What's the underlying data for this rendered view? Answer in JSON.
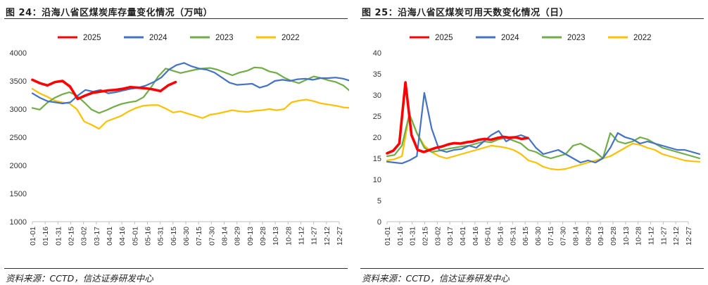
{
  "charts": [
    {
      "title": "图 24：沿海八省区煤炭库存量变化情况（万吨）",
      "source": "资料来源：CCTD，信达证券研发中心"
    },
    {
      "title": "图 25：沿海八省区煤炭可用天数变化情况（日）",
      "source": "资料来源：CCTD，信达证券研发中心"
    }
  ],
  "chart_data": [
    {
      "type": "line",
      "title": "图 24：沿海八省区煤炭库存量变化情况（万吨）",
      "xlabel": "",
      "ylabel": "",
      "ylim": [
        1000,
        4000
      ],
      "yticks": [
        1000,
        1500,
        2000,
        2500,
        3000,
        3500,
        4000
      ],
      "xticks": [
        "01-01",
        "01-16",
        "01-31",
        "02-15",
        "03-02",
        "03-17",
        "04-01",
        "04-16",
        "05-01",
        "05-16",
        "05-31",
        "06-15",
        "06-30",
        "07-15",
        "07-30",
        "08-14",
        "08-29",
        "09-13",
        "09-28",
        "10-13",
        "10-28",
        "11-12",
        "11-27",
        "12-12",
        "12-27"
      ],
      "legend_position": "top",
      "grid": false,
      "series": [
        {
          "name": "2025",
          "color": "#ff0000",
          "x_end": 11.2,
          "values": [
            3520,
            3460,
            3420,
            3480,
            3500,
            3400,
            3180,
            3240,
            3290,
            3310,
            3330,
            3340,
            3360,
            3390,
            3380,
            3370,
            3350,
            3320,
            3420,
            3480
          ]
        },
        {
          "name": "2024",
          "color": "#4472c4",
          "x_end": 24.9,
          "values": [
            3280,
            3200,
            3140,
            3120,
            3100,
            3120,
            3240,
            3340,
            3310,
            3340,
            3280,
            3300,
            3330,
            3360,
            3380,
            3420,
            3480,
            3560,
            3700,
            3780,
            3820,
            3760,
            3720,
            3700,
            3650,
            3560,
            3470,
            3430,
            3440,
            3450,
            3380,
            3420,
            3500,
            3520,
            3500,
            3530,
            3540,
            3520,
            3550,
            3550,
            3560,
            3540,
            3500
          ]
        },
        {
          "name": "2023",
          "color": "#70ad47",
          "x_end": 24.9,
          "values": [
            3020,
            2990,
            3110,
            3200,
            3260,
            3300,
            3240,
            3120,
            2990,
            2930,
            2980,
            3040,
            3090,
            3120,
            3140,
            3210,
            3380,
            3580,
            3720,
            3680,
            3640,
            3670,
            3700,
            3720,
            3730,
            3700,
            3650,
            3600,
            3650,
            3680,
            3740,
            3730,
            3670,
            3640,
            3560,
            3500,
            3460,
            3520,
            3580,
            3550,
            3510,
            3480,
            3420,
            3310
          ]
        },
        {
          "name": "2022",
          "color": "#ffc000",
          "x_end": 24.9,
          "values": [
            3360,
            3280,
            3220,
            3150,
            3120,
            3100,
            3000,
            2780,
            2720,
            2650,
            2780,
            2830,
            2880,
            2960,
            3020,
            3060,
            3070,
            3070,
            3010,
            2940,
            2960,
            2920,
            2880,
            2840,
            2900,
            2920,
            2950,
            2980,
            2960,
            2950,
            2970,
            2980,
            3000,
            2980,
            3000,
            3120,
            3150,
            3170,
            3140,
            3100,
            3080,
            3060,
            3030,
            3020
          ]
        }
      ]
    },
    {
      "type": "line",
      "title": "图 25：沿海八省区煤炭可用天数变化情况（日）",
      "xlabel": "",
      "ylabel": "",
      "ylim": [
        0,
        40
      ],
      "yticks": [
        0,
        5,
        10,
        15,
        20,
        25,
        30,
        35,
        40
      ],
      "xticks": [
        "01-01",
        "01-16",
        "01-31",
        "02-15",
        "03-02",
        "03-17",
        "04-01",
        "04-16",
        "05-01",
        "05-16",
        "05-31",
        "06-15",
        "06-30",
        "07-15",
        "07-30",
        "08-14",
        "08-29",
        "09-13",
        "09-28",
        "10-13",
        "10-28",
        "11-12",
        "11-27",
        "12-12",
        "12-27"
      ],
      "legend_position": "top",
      "grid": false,
      "series": [
        {
          "name": "2025",
          "color": "#ff0000",
          "x_end": 11.2,
          "values": [
            16.2,
            16.8,
            18.5,
            33.0,
            20.5,
            17.0,
            16.5,
            17.0,
            17.5,
            17.8,
            18.3,
            18.6,
            18.5,
            18.8,
            19.0,
            19.4,
            19.6,
            19.4,
            19.8,
            20.1,
            19.9,
            20.0,
            19.6,
            19.8
          ]
        },
        {
          "name": "2024",
          "color": "#4472c4",
          "x_end": 24.9,
          "values": [
            14.2,
            14.0,
            13.8,
            14.5,
            15.5,
            30.5,
            22.0,
            17.0,
            16.5,
            17.0,
            17.2,
            18.0,
            17.5,
            19.0,
            20.5,
            21.5,
            19.0,
            20.0,
            20.5,
            19.8,
            17.5,
            16.0,
            16.5,
            17.0,
            16.0,
            15.0,
            14.0,
            14.5,
            14.0,
            15.0,
            17.5,
            21.0,
            20.0,
            19.5,
            18.5,
            19.0,
            18.5,
            18.0,
            17.5,
            17.0,
            17.0,
            16.5,
            16.0
          ]
        },
        {
          "name": "2023",
          "color": "#70ad47",
          "x_end": 24.9,
          "values": [
            15.5,
            15.8,
            18.0,
            25.5,
            21.0,
            17.5,
            16.5,
            16.8,
            17.2,
            17.5,
            17.8,
            18.0,
            18.5,
            19.0,
            18.8,
            19.5,
            19.8,
            19.2,
            18.5,
            17.0,
            16.5,
            15.5,
            15.0,
            15.5,
            16.0,
            18.0,
            18.5,
            17.5,
            16.5,
            15.0,
            21.0,
            19.0,
            18.5,
            19.0,
            20.0,
            19.5,
            18.5,
            17.5,
            17.0,
            16.5,
            16.0,
            15.5,
            15.0
          ]
        },
        {
          "name": "2022",
          "color": "#ffc000",
          "x_end": 24.9,
          "values": [
            14.5,
            14.8,
            15.5,
            25.5,
            21.0,
            18.0,
            16.5,
            15.5,
            15.0,
            15.5,
            16.0,
            16.5,
            17.0,
            17.5,
            18.0,
            17.8,
            17.5,
            17.0,
            16.0,
            14.5,
            14.0,
            13.0,
            12.5,
            12.3,
            12.5,
            13.0,
            13.5,
            14.0,
            14.5,
            15.0,
            15.5,
            16.5,
            17.5,
            18.5,
            18.2,
            17.5,
            17.0,
            16.0,
            15.5,
            15.0,
            14.5,
            14.3,
            14.2
          ]
        }
      ]
    }
  ]
}
